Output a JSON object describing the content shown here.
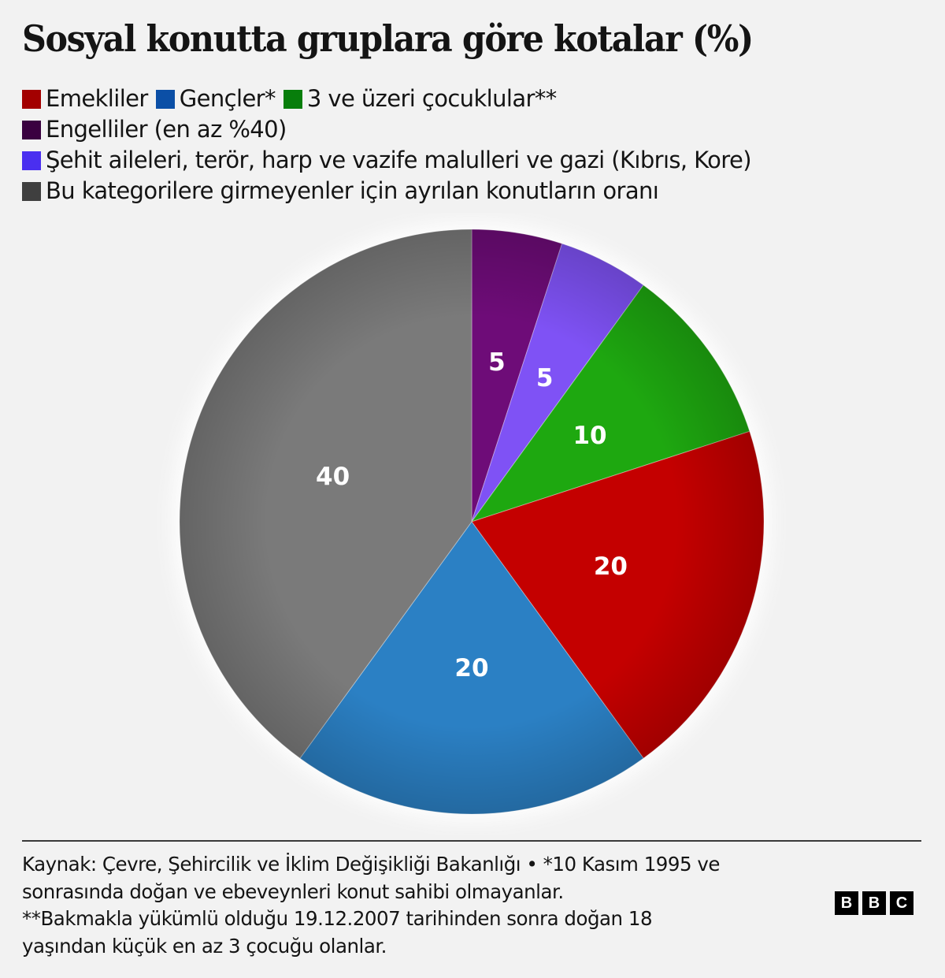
{
  "title": "Sosyal konutta gruplara göre kotalar (%)",
  "legend": [
    {
      "label": "Emekliler",
      "color": "#a30000"
    },
    {
      "label": "Gençler*",
      "color": "#0b4fa6"
    },
    {
      "label": "3 ve üzeri çocuklular**",
      "color": "#077e0b"
    },
    {
      "label": "Engelliler (en az %40)",
      "color": "#3a0040"
    },
    {
      "label": "Şehit aileleri, terör, harp ve vazife malulleri ve gazi (Kıbrıs, Kore)",
      "color": "#4a2ff0"
    },
    {
      "label": "Bu kategorilere girmeyenler için ayrılan konutların oranı",
      "color": "#3f3f3f"
    }
  ],
  "chart_data": {
    "type": "pie",
    "title": "Sosyal konutta gruplara göre kotalar (%)",
    "start_angle": "12 o'clock",
    "direction": "clockwise",
    "slices": [
      {
        "label": "Engelliler (en az %40)",
        "value": 5,
        "color": "#6e0c78",
        "text": "5"
      },
      {
        "label": "Şehit aileleri, terör, harp ve vazife malulleri ve gazi (Kıbrıs, Kore)",
        "value": 5,
        "color": "#7f52f5",
        "text": "5"
      },
      {
        "label": "3 ve üzeri çocuklular**",
        "value": 10,
        "color": "#1ea810",
        "text": "10"
      },
      {
        "label": "Emekliler",
        "value": 20,
        "color": "#c40000",
        "text": "20"
      },
      {
        "label": "Gençler*",
        "value": 20,
        "color": "#2b80c4",
        "text": "20"
      },
      {
        "label": "Bu kategorilere girmeyenler için ayrılan konutların oranı",
        "value": 40,
        "color": "#7a7a7a",
        "text": "40"
      }
    ],
    "legend_position": "top",
    "units": "%"
  },
  "footer": {
    "lines": [
      "Kaynak: Çevre, Şehircilik ve İklim Değişikliği Bakanlığı • *10 Kasım 1995 ve",
      "sonrasında doğan ve ebeveynleri konut sahibi olmayanlar.",
      "**Bakmakla yükümlü olduğu 19.12.2007 tarihinden sonra doğan 18",
      "yaşından küçük en az 3 çocuğu olanlar."
    ]
  },
  "logo": {
    "letters": [
      "B",
      "B",
      "C"
    ]
  }
}
